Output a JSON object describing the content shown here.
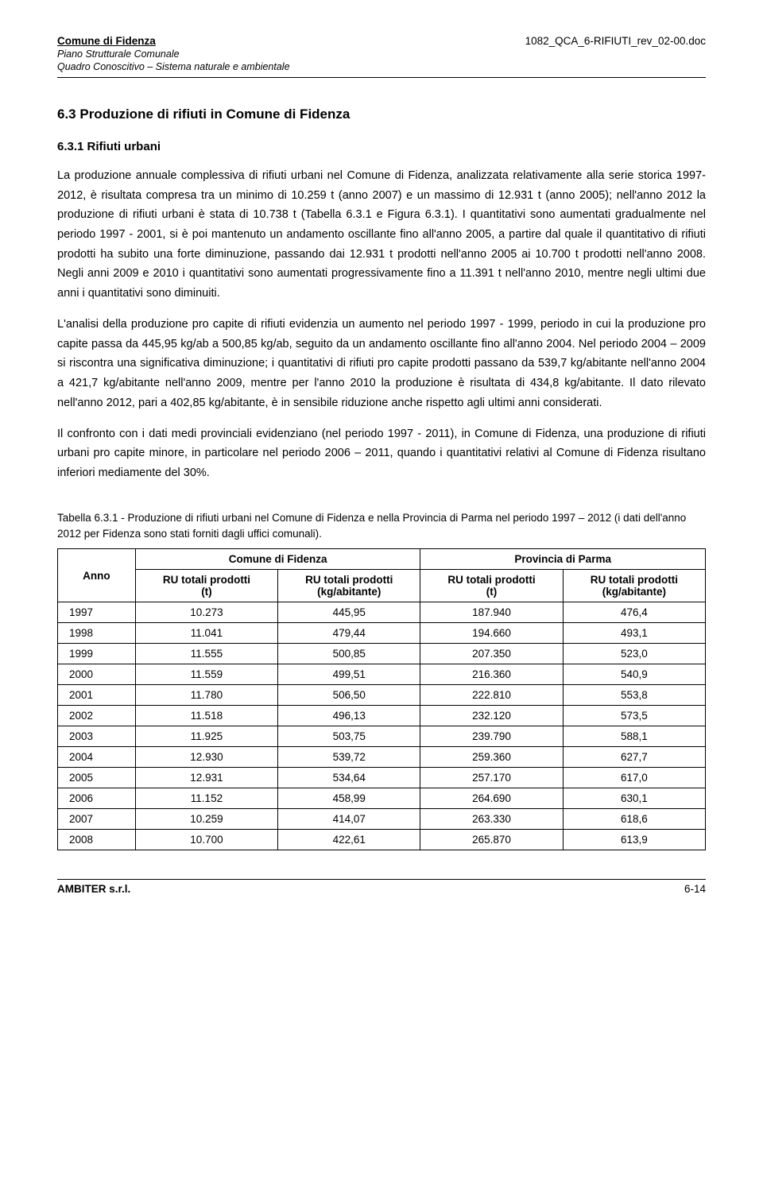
{
  "header": {
    "title_bold": "Comune di Fidenza",
    "sub1": "Piano Strutturale Comunale",
    "sub2": "Quadro Conoscitivo – Sistema naturale e ambientale",
    "doc_code": "1082_QCA_6-RIFIUTI_rev_02-00.doc"
  },
  "section": {
    "heading": "6.3  Produzione di rifiuti in Comune di Fidenza",
    "sub_heading": "6.3.1  Rifiuti urbani",
    "para1": "La produzione annuale complessiva di rifiuti urbani nel Comune di Fidenza, analizzata relativamente alla serie storica 1997-2012, è risultata compresa tra un minimo di 10.259 t (anno 2007) e un massimo di 12.931 t (anno 2005); nell'anno 2012 la produzione di rifiuti urbani è stata di 10.738 t (Tabella 6.3.1 e Figura 6.3.1). I quantitativi sono aumentati gradualmente nel periodo 1997 - 2001, si è poi mantenuto un andamento oscillante fino all'anno 2005, a partire dal quale il quantitativo di rifiuti prodotti ha subito una forte diminuzione, passando dai 12.931 t prodotti nell'anno 2005 ai 10.700 t prodotti nell'anno 2008. Negli anni 2009 e 2010 i quantitativi sono aumentati progressivamente fino a 11.391 t nell'anno 2010, mentre negli ultimi due anni i quantitativi sono diminuiti.",
    "para2": "L'analisi della produzione pro capite di rifiuti evidenzia un aumento nel periodo 1997 - 1999, periodo in cui la produzione pro capite passa da 445,95 kg/ab a 500,85 kg/ab, seguito da un andamento oscillante fino all'anno 2004. Nel periodo 2004 – 2009 si riscontra una significativa diminuzione; i quantitativi di rifiuti pro capite prodotti passano da 539,7 kg/abitante nell'anno 2004 a 421,7 kg/abitante nell'anno 2009, mentre per l'anno 2010 la produzione è risultata di 434,8 kg/abitante. Il dato rilevato nell'anno 2012, pari a 402,85 kg/abitante, è in sensibile riduzione anche rispetto agli ultimi anni considerati.",
    "para3": "Il confronto con i dati medi provinciali evidenziano (nel periodo 1997 - 2011), in Comune di Fidenza, una produzione di rifiuti urbani pro capite minore, in particolare nel periodo 2006 – 2011, quando i quantitativi relativi al Comune di Fidenza risultano inferiori mediamente del 30%."
  },
  "table": {
    "caption": "Tabella 6.3.1 - Produzione di rifiuti urbani nel Comune di Fidenza e nella Provincia di Parma nel periodo 1997 – 2012 (i dati dell'anno 2012 per Fidenza sono stati forniti dagli uffici comunali).",
    "headers": {
      "anno": "Anno",
      "group1": "Comune di Fidenza",
      "group2": "Provincia di Parma",
      "col_t": "RU totali prodotti\n(t)",
      "col_kg": "RU totali prodotti\n(kg/abitante)"
    },
    "rows": [
      [
        "1997",
        "10.273",
        "445,95",
        "187.940",
        "476,4"
      ],
      [
        "1998",
        "11.041",
        "479,44",
        "194.660",
        "493,1"
      ],
      [
        "1999",
        "11.555",
        "500,85",
        "207.350",
        "523,0"
      ],
      [
        "2000",
        "11.559",
        "499,51",
        "216.360",
        "540,9"
      ],
      [
        "2001",
        "11.780",
        "506,50",
        "222.810",
        "553,8"
      ],
      [
        "2002",
        "11.518",
        "496,13",
        "232.120",
        "573,5"
      ],
      [
        "2003",
        "11.925",
        "503,75",
        "239.790",
        "588,1"
      ],
      [
        "2004",
        "12.930",
        "539,72",
        "259.360",
        "627,7"
      ],
      [
        "2005",
        "12.931",
        "534,64",
        "257.170",
        "617,0"
      ],
      [
        "2006",
        "11.152",
        "458,99",
        "264.690",
        "630,1"
      ],
      [
        "2007",
        "10.259",
        "414,07",
        "263.330",
        "618,6"
      ],
      [
        "2008",
        "10.700",
        "422,61",
        "265.870",
        "613,9"
      ]
    ]
  },
  "footer": {
    "left": "AMBITER s.r.l.",
    "right": "6-14"
  }
}
